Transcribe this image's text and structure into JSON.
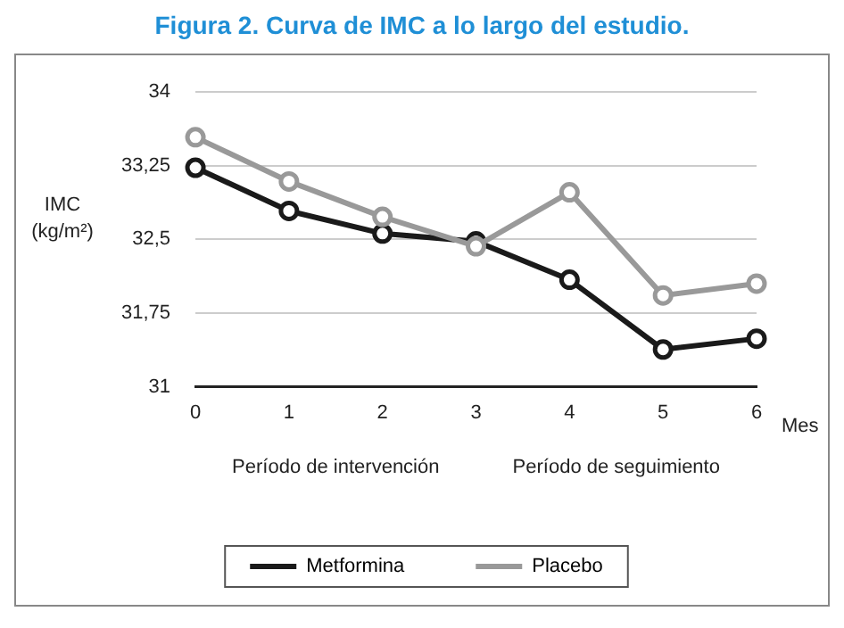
{
  "chart_data": {
    "type": "line",
    "title": "Figura 2. Curva de IMC a lo largo del estudio.",
    "xlabel": "Mes",
    "ylabel": "IMC (kg/m²)",
    "categories": [
      "0",
      "1",
      "2",
      "3",
      "4",
      "5",
      "6"
    ],
    "series": [
      {
        "name": "Metformina",
        "color": "#1a1a1a",
        "values": [
          33.23,
          32.79,
          32.56,
          32.48,
          32.09,
          31.38,
          31.49
        ]
      },
      {
        "name": "Placebo",
        "color": "#999999",
        "values": [
          33.54,
          33.09,
          32.73,
          32.43,
          32.98,
          31.93,
          32.05
        ]
      }
    ],
    "ylim": [
      31,
      34
    ],
    "yticks": [
      31,
      {
        "value": 31.75,
        "label": "31,75"
      },
      {
        "value": 32.5,
        "label": "32,5"
      },
      {
        "value": 33.25,
        "label": "33,25"
      },
      34
    ],
    "grid": "y",
    "legend": "bottom",
    "marker": "circle",
    "line_style": "solid",
    "annotations": [
      "Período de intervención",
      "Período de seguimiento"
    ]
  }
}
